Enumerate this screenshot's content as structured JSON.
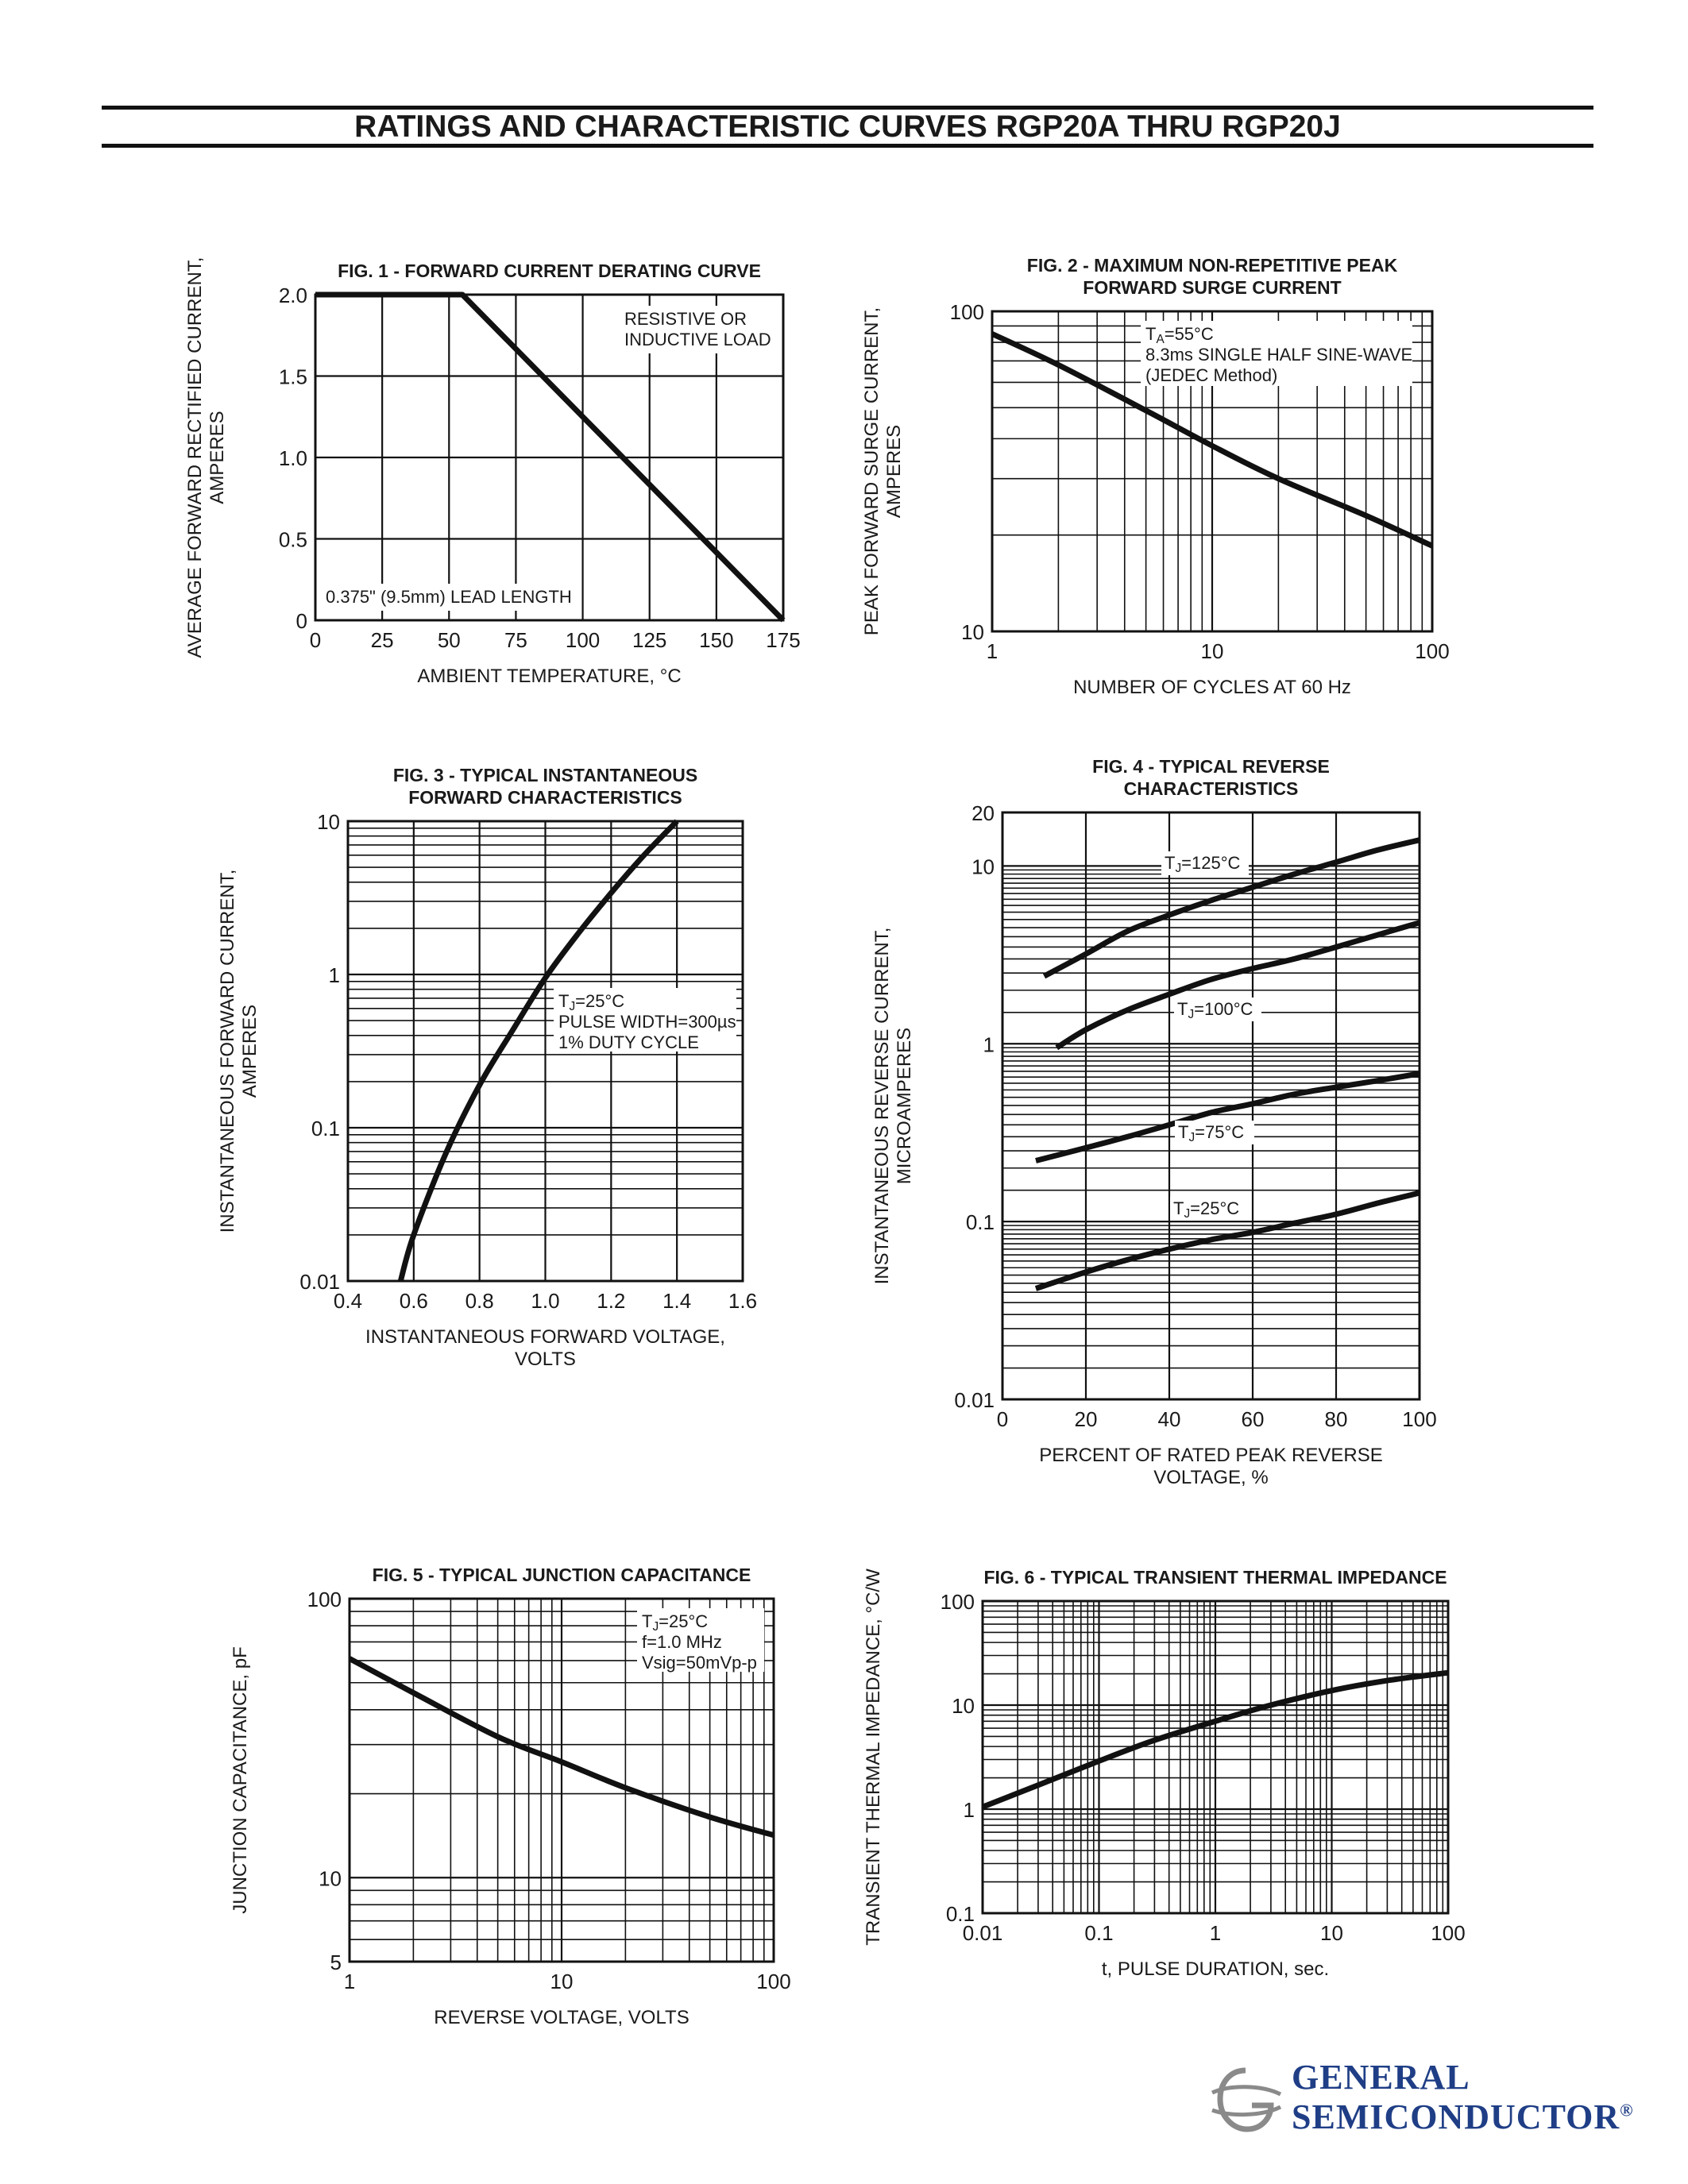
{
  "page": {
    "title": "RATINGS AND CHARACTERISTIC CURVES RGP20A THRU RGP20J"
  },
  "logo": {
    "line1": "GENERAL",
    "line2": "SEMICONDUCTOR",
    "registered": "®",
    "color": "#1f3e86"
  },
  "chart_data": [
    {
      "id": "fig1",
      "type": "line",
      "title": "FIG. 1 - FORWARD CURRENT DERATING CURVE",
      "xlabel": "AMBIENT TEMPERATURE, °C",
      "ylabel": [
        "AVERAGE FORWARD RECTIFIED CURRENT,",
        "AMPERES"
      ],
      "xscale": "linear",
      "yscale": "linear",
      "xlim": [
        0,
        175
      ],
      "ylim": [
        0,
        2.0
      ],
      "xticks": [
        0,
        25,
        50,
        75,
        100,
        125,
        150,
        175
      ],
      "xtick_labels": [
        "0",
        "25",
        "50",
        "75",
        "100",
        "125",
        "150",
        "175"
      ],
      "yticks": [
        0,
        0.5,
        1.0,
        1.5,
        2.0
      ],
      "ytick_labels": [
        "0",
        "0.5",
        "1.0",
        "1.5",
        "2.0"
      ],
      "grid": true,
      "series": [
        {
          "x": [
            0,
            55,
            175
          ],
          "y": [
            2.0,
            2.0,
            0
          ]
        }
      ],
      "annotations": [
        {
          "lines": [
            "RESISTIVE OR",
            "INDUCTIVE LOAD"
          ],
          "position": "top-right"
        },
        {
          "lines": [
            "0.375\" (9.5mm) LEAD LENGTH"
          ],
          "position": "bottom-left"
        }
      ]
    },
    {
      "id": "fig2",
      "type": "line",
      "title": [
        "FIG. 2 - MAXIMUM NON-REPETITIVE PEAK",
        "FORWARD SURGE CURRENT"
      ],
      "xlabel": "NUMBER OF CYCLES AT 60 Hz",
      "ylabel": [
        "PEAK FORWARD SURGE CURRENT,",
        "AMPERES"
      ],
      "xscale": "log",
      "yscale": "log",
      "xlim": [
        1,
        100
      ],
      "ylim": [
        10,
        100
      ],
      "xticks": [
        1,
        10,
        100
      ],
      "xtick_labels": [
        "1",
        "10",
        "100"
      ],
      "yticks": [
        10,
        100
      ],
      "ytick_labels": [
        "10",
        "100"
      ],
      "grid": true,
      "series": [
        {
          "x": [
            1,
            2,
            5,
            10,
            20,
            50,
            100
          ],
          "y": [
            85,
            68,
            49,
            38,
            30,
            23,
            18.5
          ]
        }
      ],
      "annotations": [
        {
          "lines": [
            "TA=55°C",
            "8.3ms SINGLE HALF SINE-WAVE",
            "(JEDEC Method)"
          ],
          "position": "top-right"
        }
      ]
    },
    {
      "id": "fig3",
      "type": "line",
      "title": [
        "FIG. 3 - TYPICAL INSTANTANEOUS",
        "FORWARD CHARACTERISTICS"
      ],
      "xlabel": [
        "INSTANTANEOUS FORWARD VOLTAGE,",
        "VOLTS"
      ],
      "ylabel": [
        "INSTANTANEOUS FORWARD CURRENT,",
        "AMPERES"
      ],
      "xscale": "linear",
      "yscale": "log",
      "xlim": [
        0.4,
        1.6
      ],
      "ylim": [
        0.01,
        10
      ],
      "xticks": [
        0.4,
        0.6,
        0.8,
        1.0,
        1.2,
        1.4,
        1.6
      ],
      "xtick_labels": [
        "0.4",
        "0.6",
        "0.8",
        "1.0",
        "1.2",
        "1.4",
        "1.6"
      ],
      "yticks": [
        0.01,
        0.1,
        1,
        10
      ],
      "ytick_labels": [
        "0.01",
        "0.1",
        "1",
        "10"
      ],
      "grid": true,
      "series": [
        {
          "x": [
            0.56,
            0.6,
            0.7,
            0.8,
            0.9,
            1.0,
            1.1,
            1.2,
            1.3,
            1.4
          ],
          "y": [
            0.01,
            0.02,
            0.07,
            0.19,
            0.43,
            0.95,
            1.85,
            3.4,
            6.0,
            10
          ]
        }
      ],
      "annotations": [
        {
          "lines": [
            "TJ=25°C",
            "PULSE WIDTH=300µs",
            "1% DUTY CYCLE"
          ],
          "position": "center-right"
        }
      ]
    },
    {
      "id": "fig4",
      "type": "line",
      "title": [
        "FIG. 4 - TYPICAL REVERSE",
        "CHARACTERISTICS"
      ],
      "xlabel": [
        "PERCENT OF RATED PEAK REVERSE",
        "VOLTAGE, %"
      ],
      "ylabel": [
        "INSTANTANEOUS REVERSE  CURRENT,",
        "MICROAMPERES"
      ],
      "xscale": "linear",
      "yscale": "log",
      "xlim": [
        0,
        100
      ],
      "ylim": [
        0.01,
        20
      ],
      "xticks": [
        0,
        20,
        40,
        60,
        80,
        100
      ],
      "xtick_labels": [
        "0",
        "20",
        "40",
        "60",
        "80",
        "100"
      ],
      "yticks": [
        0.01,
        0.1,
        1,
        10,
        20
      ],
      "ytick_labels": [
        "0.01",
        "0.1",
        "1",
        "10",
        "20"
      ],
      "grid": true,
      "series": [
        {
          "name": "TJ=125°C",
          "x": [
            10,
            20,
            30,
            40,
            50,
            60,
            70,
            80,
            90,
            100
          ],
          "y": [
            2.4,
            3.2,
            4.3,
            5.3,
            6.4,
            7.6,
            9.0,
            10.5,
            12.3,
            14.0
          ]
        },
        {
          "name": "TJ=100°C",
          "x": [
            13,
            20,
            30,
            40,
            50,
            60,
            70,
            80,
            90,
            100
          ],
          "y": [
            0.95,
            1.2,
            1.55,
            1.9,
            2.3,
            2.65,
            3.0,
            3.5,
            4.1,
            4.8
          ]
        },
        {
          "name": "TJ=75°C",
          "x": [
            8,
            20,
            30,
            40,
            50,
            60,
            70,
            80,
            90,
            100
          ],
          "y": [
            0.22,
            0.26,
            0.3,
            0.35,
            0.41,
            0.46,
            0.52,
            0.57,
            0.62,
            0.68
          ]
        },
        {
          "name": "TJ=25°C",
          "x": [
            8,
            20,
            30,
            40,
            50,
            60,
            70,
            80,
            90,
            100
          ],
          "y": [
            0.042,
            0.052,
            0.061,
            0.07,
            0.079,
            0.087,
            0.098,
            0.11,
            0.127,
            0.145
          ]
        }
      ]
    },
    {
      "id": "fig5",
      "type": "line",
      "title": "FIG. 5 - TYPICAL JUNCTION CAPACITANCE",
      "xlabel": "REVERSE VOLTAGE, VOLTS",
      "ylabel": "JUNCTION CAPACITANCE, pF",
      "xscale": "log",
      "yscale": "log",
      "xlim": [
        1,
        100
      ],
      "ylim": [
        5,
        100
      ],
      "xticks": [
        1,
        10,
        100
      ],
      "xtick_labels": [
        "1",
        "10",
        "100"
      ],
      "yticks": [
        5,
        10,
        100
      ],
      "ytick_labels": [
        "5",
        "10",
        "100"
      ],
      "grid": true,
      "series": [
        {
          "x": [
            1,
            2,
            5,
            10,
            20,
            50,
            100
          ],
          "y": [
            61,
            46,
            32,
            26,
            21,
            16.5,
            14.2
          ]
        }
      ],
      "annotations": [
        {
          "lines": [
            "TJ=25°C",
            "f=1.0 MHz",
            "Vsig=50mVp-p"
          ],
          "position": "top-right"
        }
      ]
    },
    {
      "id": "fig6",
      "type": "line",
      "title": "FIG. 6 - TYPICAL TRANSIENT THERMAL IMPEDANCE",
      "xlabel": "t, PULSE DURATION, sec.",
      "ylabel": "TRANSIENT THERMAL IMPEDANCE, °C/W",
      "xscale": "log",
      "yscale": "log",
      "xlim": [
        0.01,
        100
      ],
      "ylim": [
        0.1,
        100
      ],
      "xticks": [
        0.01,
        0.1,
        1,
        10,
        100
      ],
      "xtick_labels": [
        "0.01",
        "0.1",
        "1",
        "10",
        "100"
      ],
      "yticks": [
        0.1,
        1,
        10,
        100
      ],
      "ytick_labels": [
        "0.1",
        "1",
        "10",
        "100"
      ],
      "grid": true,
      "series": [
        {
          "x": [
            0.01,
            0.03,
            0.1,
            0.3,
            1,
            3,
            10,
            30,
            100
          ],
          "y": [
            1.05,
            1.7,
            2.9,
            4.6,
            7.0,
            10.0,
            13.8,
            17.2,
            20.5
          ]
        }
      ]
    }
  ]
}
